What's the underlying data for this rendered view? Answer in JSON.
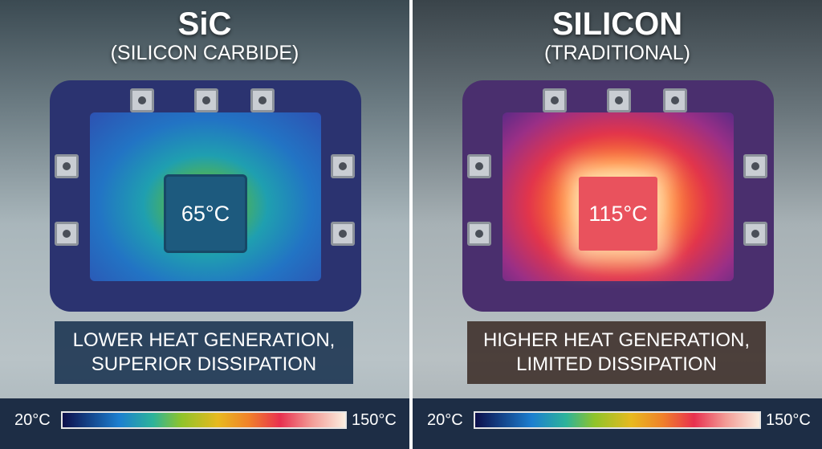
{
  "left": {
    "title": "SiC",
    "subtitle": "(SILICON CARBIDE)",
    "temperature": "65°C",
    "caption_line1": "LOWER HEAT GENERATION,",
    "caption_line2": "SUPERIOR DISSIPATION",
    "scale_min": "20°C",
    "scale_max": "150°C"
  },
  "right": {
    "title": "SILICON",
    "subtitle": "(TRADITIONAL)",
    "temperature": "115°C",
    "caption_line1": "HIGHER HEAT GENERATION,",
    "caption_line2": "LIMITED DISSIPATION",
    "scale_min": "20°C",
    "scale_max": "150°C"
  },
  "colors": {
    "legend_bg": "#1d2d45",
    "sic_caption_bg": "#193250",
    "si_caption_bg": "#3c2d28"
  }
}
